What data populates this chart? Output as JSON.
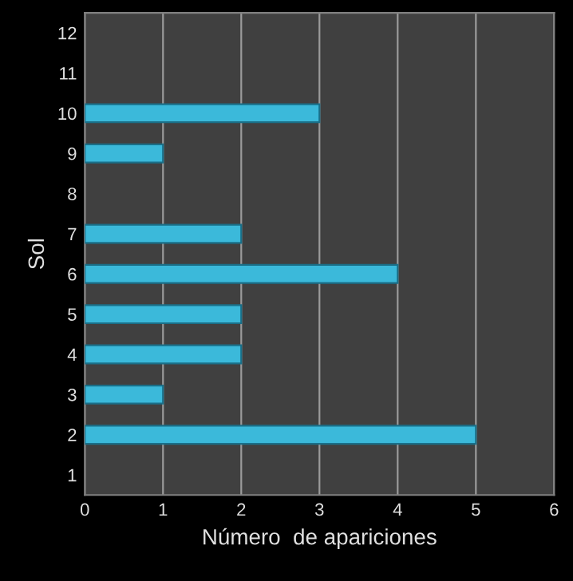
{
  "chart_data": {
    "type": "bar",
    "orientation": "horizontal",
    "xlabel": "Número  de apariciones",
    "ylabel": "Sol",
    "categories": [
      "12",
      "11",
      "10",
      "9",
      "8",
      "7",
      "6",
      "5",
      "4",
      "3",
      "2",
      "1"
    ],
    "values": [
      0,
      0,
      3,
      1,
      0,
      2,
      4,
      2,
      2,
      1,
      5,
      0
    ],
    "color": "#3bb9da",
    "xlim": [
      0,
      6
    ],
    "xticks": [
      0,
      1,
      2,
      3,
      4,
      5,
      6
    ],
    "grid": "x"
  }
}
